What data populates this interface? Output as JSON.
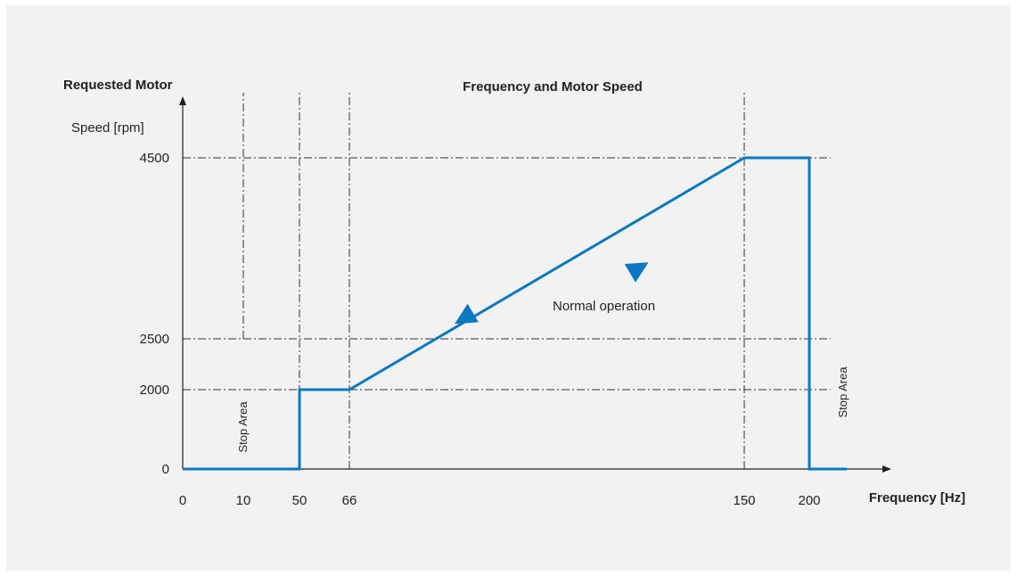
{
  "colors": {
    "background": "#f2f2f2",
    "curve": "#0a78c2",
    "axis": "#222222",
    "guide": "#333333"
  },
  "chart_data": {
    "type": "line",
    "title": "Frequency and Motor Speed",
    "ylabel_line1": "Requested Motor",
    "ylabel_line2": "Speed [rpm]",
    "xlabel": "Frequency [Hz]",
    "xlim": [
      0,
      200
    ],
    "ylim": [
      0,
      4500
    ],
    "x_ticks": [
      0,
      10,
      50,
      66,
      150,
      200
    ],
    "x_tick_labels": [
      "0",
      "10",
      "50",
      "66",
      "150",
      "200"
    ],
    "y_ticks": [
      0,
      2000,
      2500,
      4500
    ],
    "y_tick_labels": [
      "0",
      "2000",
      "2500",
      "4500"
    ],
    "series": [
      {
        "x": [
          0,
          50,
          50,
          66,
          150,
          200,
          200,
          210
        ],
        "y": [
          0,
          0,
          2000,
          2000,
          4500,
          4500,
          0,
          0
        ]
      }
    ],
    "arrows": [
      {
        "x": 127.5,
        "y": 3280,
        "direction": "up"
      },
      {
        "x": 90.5,
        "y": 2730,
        "direction": "down"
      }
    ],
    "vertical_guides": [
      10,
      50,
      66,
      150
    ],
    "horizontal_guides": [
      2000,
      2500,
      4500
    ],
    "annotations": [
      {
        "text": "Normal operation",
        "x": 120,
        "y": 2600
      },
      {
        "text": "Stop Area",
        "x": 10,
        "y": 1000,
        "rotated": true
      },
      {
        "text": "Stop Area",
        "x": 210,
        "y": 2000,
        "rotated": true
      }
    ]
  }
}
